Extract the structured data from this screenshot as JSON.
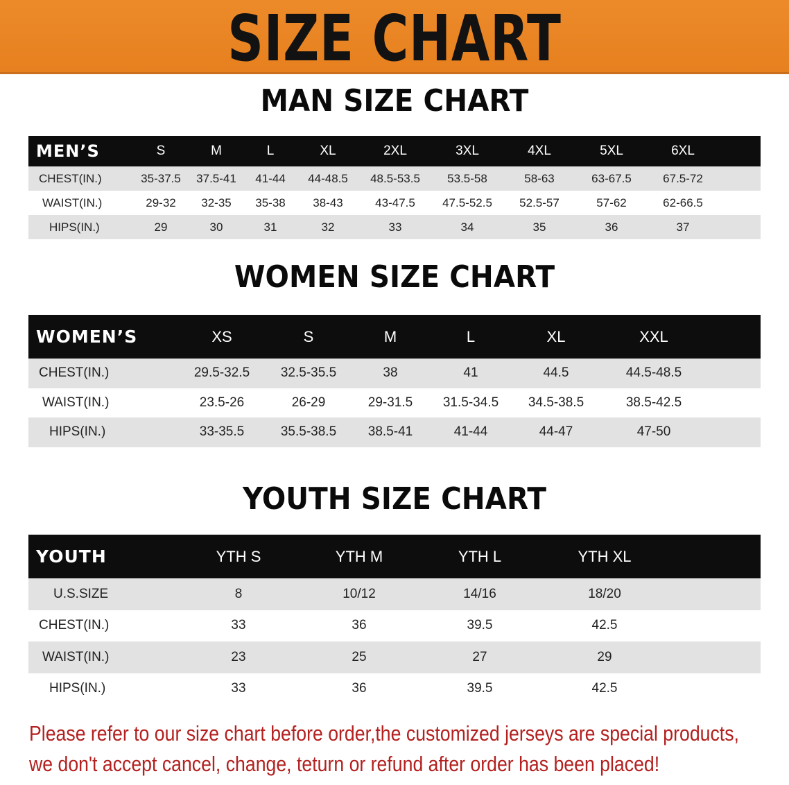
{
  "banner": {
    "title": "SIZE CHART",
    "color": "#e9842a"
  },
  "tables": [
    {
      "title": "MAN SIZE CHART",
      "header_label": "MEN’S",
      "sizes": [
        "S",
        "M",
        "L",
        "XL",
        "2XL",
        "3XL",
        "4XL",
        "5XL",
        "6XL"
      ],
      "rows": [
        {
          "label": "CHEST(IN.)",
          "values": [
            "35-37.5",
            "37.5-41",
            "41-44",
            "44-48.5",
            "48.5-53.5",
            "53.5-58",
            "58-63",
            "63-67.5",
            "67.5-72"
          ]
        },
        {
          "label": "WAIST(IN.)",
          "values": [
            "29-32",
            "32-35",
            "35-38",
            "38-43",
            "43-47.5",
            "47.5-52.5",
            "52.5-57",
            "57-62",
            "62-66.5"
          ]
        },
        {
          "label": "HIPS(IN.)",
          "values": [
            "29",
            "30",
            "31",
            "32",
            "33",
            "34",
            "35",
            "36",
            "37"
          ]
        }
      ]
    },
    {
      "title": "WOMEN SIZE CHART",
      "header_label": "WOMEN’S",
      "sizes": [
        "XS",
        "S",
        "M",
        "L",
        "XL",
        "XXL"
      ],
      "rows": [
        {
          "label": "CHEST(IN.)",
          "values": [
            "29.5-32.5",
            "32.5-35.5",
            "38",
            "41",
            "44.5",
            "44.5-48.5"
          ]
        },
        {
          "label": "WAIST(IN.)",
          "values": [
            "23.5-26",
            "26-29",
            "29-31.5",
            "31.5-34.5",
            "34.5-38.5",
            "38.5-42.5"
          ]
        },
        {
          "label": "HIPS(IN.)",
          "values": [
            "33-35.5",
            "35.5-38.5",
            "38.5-41",
            "41-44",
            "44-47",
            "47-50"
          ]
        }
      ]
    },
    {
      "title": "YOUTH SIZE CHART",
      "header_label": "YOUTH",
      "sizes": [
        "YTH S",
        "YTH M",
        "YTH L",
        "YTH XL"
      ],
      "rows": [
        {
          "label": "U.S.SIZE",
          "values": [
            "8",
            "10/12",
            "14/16",
            "18/20"
          ]
        },
        {
          "label": "CHEST(IN.)",
          "values": [
            "33",
            "36",
            "39.5",
            "42.5"
          ]
        },
        {
          "label": "WAIST(IN.)",
          "values": [
            "23",
            "25",
            "27",
            "29"
          ]
        },
        {
          "label": "HIPS(IN.)",
          "values": [
            "33",
            "36",
            "39.5",
            "42.5"
          ]
        }
      ]
    }
  ],
  "note": {
    "line1": "Please refer to our size chart before order,the customized jerseys are special products,",
    "line2": "we don't accept cancel, change, teturn or refund after order has been placed!",
    "color": "#b3201f"
  }
}
